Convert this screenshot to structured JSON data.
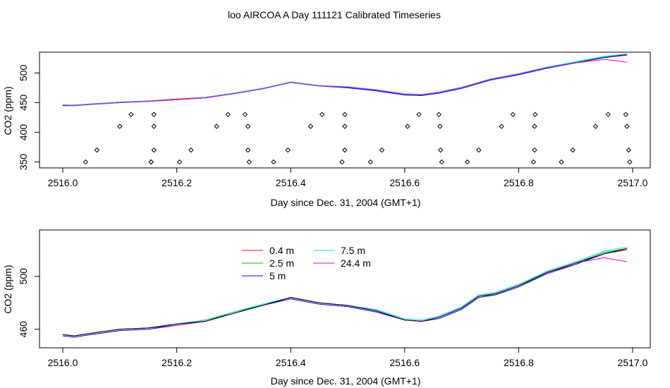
{
  "title": "loo AIRCOA A  Day 111121  Calibrated Timeseries",
  "colors": {
    "0.4 m": "#ff0000",
    "2.5 m": "#00c000",
    "5 m": "#0000ff",
    "7.5 m": "#00e0e0",
    "24.4 m": "#e000e0",
    "extra": "#000000"
  },
  "chart_data": [
    {
      "type": "line",
      "xlabel": "Day since Dec. 31, 2004 (GMT+1)",
      "ylabel": "CO2 (ppm)",
      "xlim": [
        2516.0,
        2517.0
      ],
      "ylim": [
        340,
        535
      ],
      "xticks": [
        2516.0,
        2516.2,
        2516.4,
        2516.6,
        2516.8,
        2517.0
      ],
      "xtick_labels": [
        "2516.0",
        "2516.2",
        "2516.4",
        "2516.6",
        "2516.8",
        "2517.0"
      ],
      "yticks": [
        350,
        400,
        450,
        500
      ],
      "ytick_labels": [
        "350",
        "400",
        "450",
        "500"
      ],
      "grid": false,
      "series": [
        {
          "color_key": "0.4 m",
          "x": [
            2516.0,
            2516.02,
            2516.05,
            2516.1,
            2516.15,
            2516.2,
            2516.25,
            2516.3,
            2516.35,
            2516.4,
            2516.45,
            2516.5,
            2516.55,
            2516.6,
            2516.63,
            2516.66,
            2516.7,
            2516.75,
            2516.8,
            2516.85,
            2516.9,
            2516.95,
            2516.99
          ],
          "values": [
            446,
            445,
            448,
            451,
            453,
            456,
            459,
            466,
            474,
            485,
            479,
            476,
            471,
            463,
            462,
            466,
            474,
            488,
            498,
            509,
            517,
            526,
            530
          ]
        },
        {
          "color_key": "2.5 m",
          "x": [
            2516.0,
            2516.02,
            2516.05,
            2516.1,
            2516.15,
            2516.2,
            2516.25,
            2516.3,
            2516.35,
            2516.4,
            2516.45,
            2516.5,
            2516.55,
            2516.6,
            2516.63,
            2516.66,
            2516.7,
            2516.75,
            2516.8,
            2516.85,
            2516.9,
            2516.95,
            2516.99
          ],
          "values": [
            446,
            446,
            448,
            451,
            452,
            455,
            458,
            466,
            474,
            484,
            478,
            476,
            470,
            463,
            463,
            467,
            475,
            489,
            498,
            509,
            518,
            527,
            531
          ]
        },
        {
          "color_key": "5 m",
          "x": [
            2516.0,
            2516.02,
            2516.05,
            2516.1,
            2516.15,
            2516.2,
            2516.25,
            2516.3,
            2516.35,
            2516.4,
            2516.45,
            2516.5,
            2516.55,
            2516.6,
            2516.63,
            2516.66,
            2516.7,
            2516.75,
            2516.8,
            2516.85,
            2516.9,
            2516.95,
            2516.99
          ],
          "values": [
            445,
            445,
            447,
            450,
            452,
            455,
            458,
            465,
            473,
            484,
            478,
            475,
            470,
            463,
            462,
            466,
            474,
            488,
            497,
            508,
            517,
            526,
            531
          ]
        },
        {
          "color_key": "7.5 m",
          "x": [
            2516.0,
            2516.02,
            2516.05,
            2516.1,
            2516.15,
            2516.2,
            2516.25,
            2516.3,
            2516.35,
            2516.4,
            2516.45,
            2516.5,
            2516.55,
            2516.6,
            2516.63,
            2516.66,
            2516.7,
            2516.75,
            2516.8,
            2516.85,
            2516.9,
            2516.95,
            2516.99
          ],
          "values": [
            446,
            446,
            448,
            451,
            453,
            455,
            459,
            466,
            474,
            485,
            479,
            477,
            472,
            465,
            464,
            468,
            476,
            490,
            499,
            510,
            519,
            528,
            532
          ]
        },
        {
          "color_key": "24.4 m",
          "x": [
            2516.0,
            2516.02,
            2516.05,
            2516.1,
            2516.15,
            2516.2,
            2516.25,
            2516.3,
            2516.35,
            2516.4,
            2516.45,
            2516.5,
            2516.55,
            2516.6,
            2516.63,
            2516.66,
            2516.7,
            2516.75,
            2516.8,
            2516.85,
            2516.9,
            2516.95,
            2516.99
          ],
          "values": [
            446,
            445,
            447,
            450,
            452,
            455,
            458,
            465,
            473,
            484,
            478,
            476,
            471,
            464,
            463,
            467,
            475,
            489,
            498,
            509,
            517,
            523,
            518
          ]
        }
      ],
      "valve_points": {
        "x": [
          2516.04,
          2516.06,
          2516.1,
          2516.12,
          2516.155,
          2516.16,
          2516.16,
          2516.16,
          2516.155,
          2516.205,
          2516.225,
          2516.27,
          2516.29,
          2516.32,
          2516.325,
          2516.325,
          2516.327,
          2516.37,
          2516.395,
          2516.435,
          2516.455,
          2516.49,
          2516.495,
          2516.495,
          2516.495,
          2516.54,
          2516.56,
          2516.605,
          2516.625,
          2516.66,
          2516.662,
          2516.663,
          2516.665,
          2516.71,
          2516.73,
          2516.77,
          2516.79,
          2516.826,
          2516.828,
          2516.828,
          2516.829,
          2516.875,
          2516.895,
          2516.935,
          2516.957,
          2516.988,
          2516.99,
          2516.993,
          2516.995
        ],
        "values": [
          350,
          370,
          410,
          430,
          350,
          370,
          410,
          430,
          350,
          350,
          370,
          410,
          430,
          430,
          410,
          370,
          350,
          350,
          370,
          410,
          430,
          350,
          370,
          410,
          430,
          350,
          370,
          410,
          430,
          430,
          410,
          370,
          350,
          350,
          370,
          410,
          430,
          350,
          370,
          410,
          430,
          350,
          370,
          410,
          430,
          430,
          410,
          370,
          350
        ]
      }
    },
    {
      "type": "line",
      "xlabel": "Day since Dec. 31, 2004 (GMT+1)",
      "ylabel": "CO2 (ppm)",
      "xlim": [
        2516.0,
        2517.0
      ],
      "ylim": [
        446,
        535
      ],
      "xticks": [
        2516.0,
        2516.2,
        2516.4,
        2516.6,
        2516.8,
        2517.0
      ],
      "xtick_labels": [
        "2516.0",
        "2516.2",
        "2516.4",
        "2516.6",
        "2516.8",
        "2517.0"
      ],
      "yticks": [
        460,
        500
      ],
      "ytick_labels": [
        "460",
        "500"
      ],
      "grid": false,
      "legend": {
        "placement": "top-left",
        "entries": [
          {
            "label": "0.4 m",
            "color_key": "0.4 m"
          },
          {
            "label": "2.5 m",
            "color_key": "2.5 m"
          },
          {
            "label": "5 m",
            "color_key": "5 m"
          },
          {
            "label": "7.5 m",
            "color_key": "7.5 m"
          },
          {
            "label": "24.4 m",
            "color_key": "24.4 m"
          }
        ]
      },
      "series": [
        {
          "name": "0.4 m",
          "color_key": "0.4 m",
          "x": [
            2516.0,
            2516.02,
            2516.05,
            2516.1,
            2516.15,
            2516.2,
            2516.25,
            2516.3,
            2516.35,
            2516.4,
            2516.45,
            2516.5,
            2516.55,
            2516.6,
            2516.63,
            2516.66,
            2516.7,
            2516.73,
            2516.76,
            2516.8,
            2516.85,
            2516.9,
            2516.95,
            2516.99
          ],
          "values": [
            456,
            455,
            457,
            460,
            461,
            464,
            467,
            473,
            478,
            484,
            480,
            478,
            474,
            467,
            466,
            469,
            476,
            485,
            487,
            493,
            503,
            509,
            517,
            520
          ]
        },
        {
          "name": "2.5 m",
          "color_key": "2.5 m",
          "x": [
            2516.0,
            2516.02,
            2516.05,
            2516.1,
            2516.15,
            2516.2,
            2516.25,
            2516.3,
            2516.35,
            2516.4,
            2516.45,
            2516.5,
            2516.55,
            2516.6,
            2516.63,
            2516.66,
            2516.7,
            2516.73,
            2516.76,
            2516.8,
            2516.85,
            2516.9,
            2516.95,
            2516.99
          ],
          "values": [
            456,
            455,
            457,
            460,
            461,
            463,
            466,
            473,
            478,
            484,
            480,
            478,
            474,
            467,
            466,
            469,
            476,
            485,
            486,
            492,
            503,
            510,
            518,
            521
          ]
        },
        {
          "name": "5 m",
          "color_key": "5 m",
          "x": [
            2516.0,
            2516.02,
            2516.05,
            2516.1,
            2516.15,
            2516.2,
            2516.25,
            2516.3,
            2516.35,
            2516.4,
            2516.45,
            2516.5,
            2516.55,
            2516.6,
            2516.63,
            2516.66,
            2516.7,
            2516.73,
            2516.76,
            2516.8,
            2516.85,
            2516.9,
            2516.95,
            2516.99
          ],
          "values": [
            455,
            454,
            456,
            459,
            460,
            463,
            466,
            472,
            478,
            483,
            479,
            477,
            473,
            467,
            466,
            468,
            475,
            484,
            486,
            492,
            502,
            509,
            517,
            521
          ]
        },
        {
          "name": "7.5 m",
          "color_key": "7.5 m",
          "x": [
            2516.0,
            2516.02,
            2516.05,
            2516.1,
            2516.15,
            2516.2,
            2516.25,
            2516.3,
            2516.35,
            2516.4,
            2516.45,
            2516.5,
            2516.55,
            2516.6,
            2516.63,
            2516.66,
            2516.7,
            2516.73,
            2516.76,
            2516.8,
            2516.85,
            2516.9,
            2516.95,
            2516.99
          ],
          "values": [
            456,
            455,
            457,
            460,
            461,
            464,
            467,
            473,
            479,
            484,
            480,
            478,
            475,
            468,
            467,
            470,
            477,
            486,
            488,
            494,
            504,
            511,
            519,
            522
          ]
        },
        {
          "name": "24.4 m",
          "color_key": "24.4 m",
          "x": [
            2516.0,
            2516.02,
            2516.05,
            2516.1,
            2516.15,
            2516.2,
            2516.25,
            2516.3,
            2516.35,
            2516.4,
            2516.45,
            2516.5,
            2516.55,
            2516.6,
            2516.63,
            2516.66,
            2516.7,
            2516.73,
            2516.76,
            2516.8,
            2516.85,
            2516.9,
            2516.95,
            2516.99
          ],
          "values": [
            456,
            455,
            457,
            460,
            461,
            463,
            466,
            472,
            478,
            484,
            480,
            478,
            474,
            467,
            466,
            469,
            476,
            485,
            487,
            493,
            503,
            510,
            514,
            511
          ]
        },
        {
          "color_key": "extra",
          "x": [
            2516.0,
            2516.02,
            2516.05,
            2516.1,
            2516.15,
            2516.2,
            2516.25,
            2516.3,
            2516.35,
            2516.4,
            2516.45,
            2516.5,
            2516.55,
            2516.6,
            2516.63,
            2516.66,
            2516.7,
            2516.73,
            2516.76,
            2516.8,
            2516.85,
            2516.9,
            2516.95,
            2516.99
          ],
          "values": [
            456,
            455,
            457,
            460,
            461,
            464,
            466,
            472,
            478,
            484,
            480,
            478,
            474,
            467,
            466,
            469,
            476,
            485,
            487,
            493,
            503,
            510,
            517,
            521
          ]
        }
      ]
    }
  ]
}
